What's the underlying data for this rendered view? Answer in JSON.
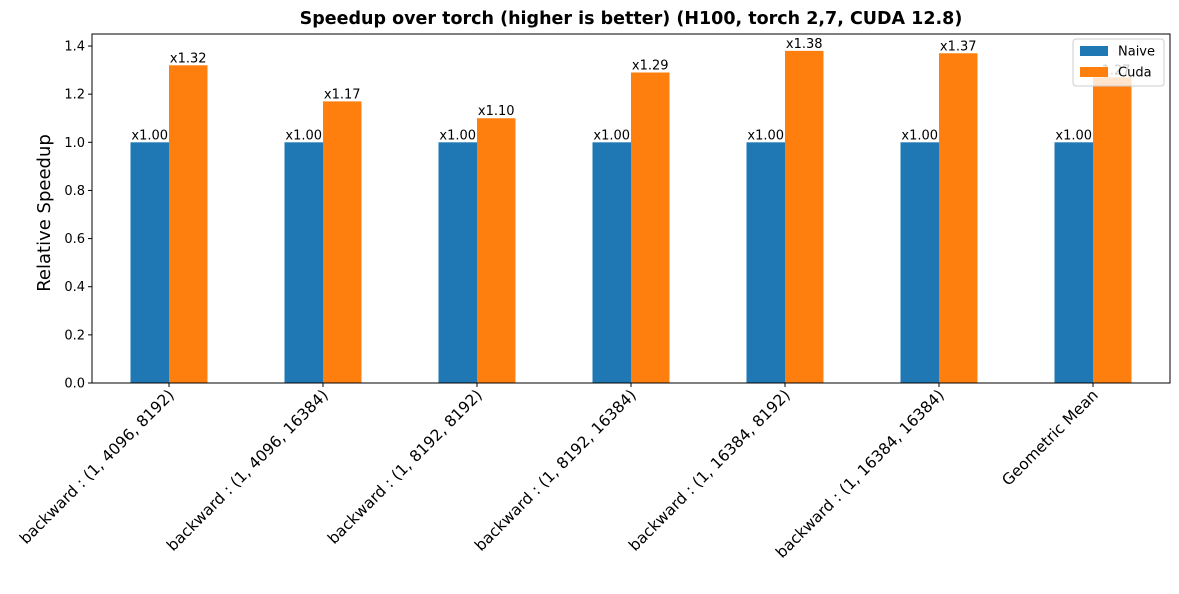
{
  "chart_data": {
    "type": "bar",
    "title": "Speedup over torch (higher is better) (H100, torch 2,7, CUDA 12.8)",
    "xlabel": "",
    "ylabel": "Relative Speedup",
    "ylim": [
      0,
      1.45
    ],
    "yticks": [
      "0.0",
      "0.2",
      "0.4",
      "0.6",
      "0.8",
      "1.0",
      "1.2",
      "1.4"
    ],
    "grid": false,
    "legend_position": "top-right",
    "categories": [
      "backward : (1, 4096, 8192)",
      "backward : (1, 4096, 16384)",
      "backward : (1, 8192, 8192)",
      "backward : (1, 8192, 16384)",
      "backward : (1, 16384, 8192)",
      "backward : (1, 16384, 16384)",
      "Geometric Mean"
    ],
    "series": [
      {
        "name": "Naive",
        "color": "#1f77b4",
        "values": [
          1.0,
          1.0,
          1.0,
          1.0,
          1.0,
          1.0,
          1.0
        ],
        "labels": [
          "x1.00",
          "x1.00",
          "x1.00",
          "x1.00",
          "x1.00",
          "x1.00",
          "x1.00"
        ]
      },
      {
        "name": "Cuda",
        "color": "#ff7f0e",
        "values": [
          1.32,
          1.17,
          1.1,
          1.29,
          1.38,
          1.37,
          1.27
        ],
        "labels": [
          "x1.32",
          "x1.17",
          "x1.10",
          "x1.29",
          "x1.38",
          "x1.37",
          "x1.27"
        ]
      }
    ]
  }
}
